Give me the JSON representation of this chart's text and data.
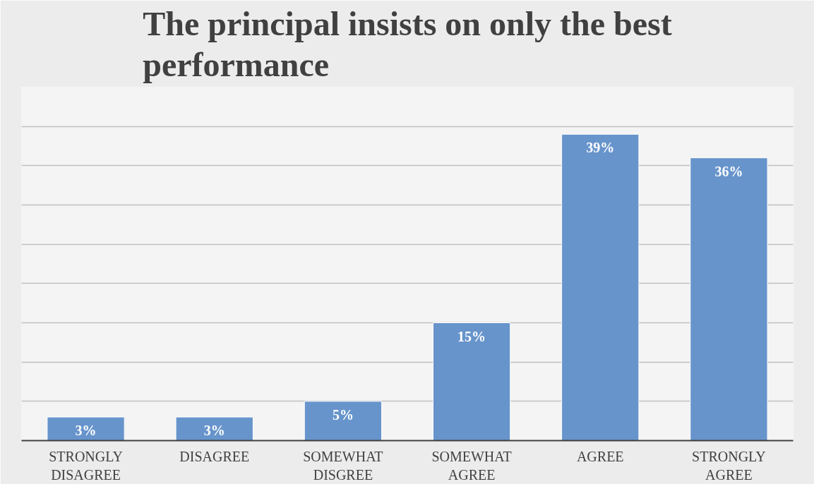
{
  "chart_data": {
    "type": "bar",
    "title": "The principal insists on only the best performance",
    "categories": [
      "STRONGLY DISAGREE",
      "DISAGREE",
      "SOMEWHAT DISGREE",
      "SOMEWHAT AGREE",
      "AGREE",
      "STRONGLY AGREE"
    ],
    "values": [
      3,
      3,
      5,
      15,
      39,
      36
    ],
    "value_labels": [
      "3%",
      "3%",
      "5%",
      "15%",
      "39%",
      "36%"
    ],
    "color": "#6794cb",
    "ylim": [
      0,
      45
    ],
    "yticks": [
      {
        "value": 0,
        "label": null
      },
      {
        "value": 5,
        "label": null
      },
      {
        "value": 10,
        "label": null
      },
      {
        "value": 15,
        "label": null
      },
      {
        "value": 20,
        "label": null
      },
      {
        "value": 25,
        "label": null
      },
      {
        "value": 30,
        "label": null
      },
      {
        "value": 35,
        "label": null
      },
      {
        "value": 40,
        "label": null
      },
      {
        "value": 45,
        "label": null
      }
    ],
    "grid": "y",
    "tick_labels": "x"
  }
}
